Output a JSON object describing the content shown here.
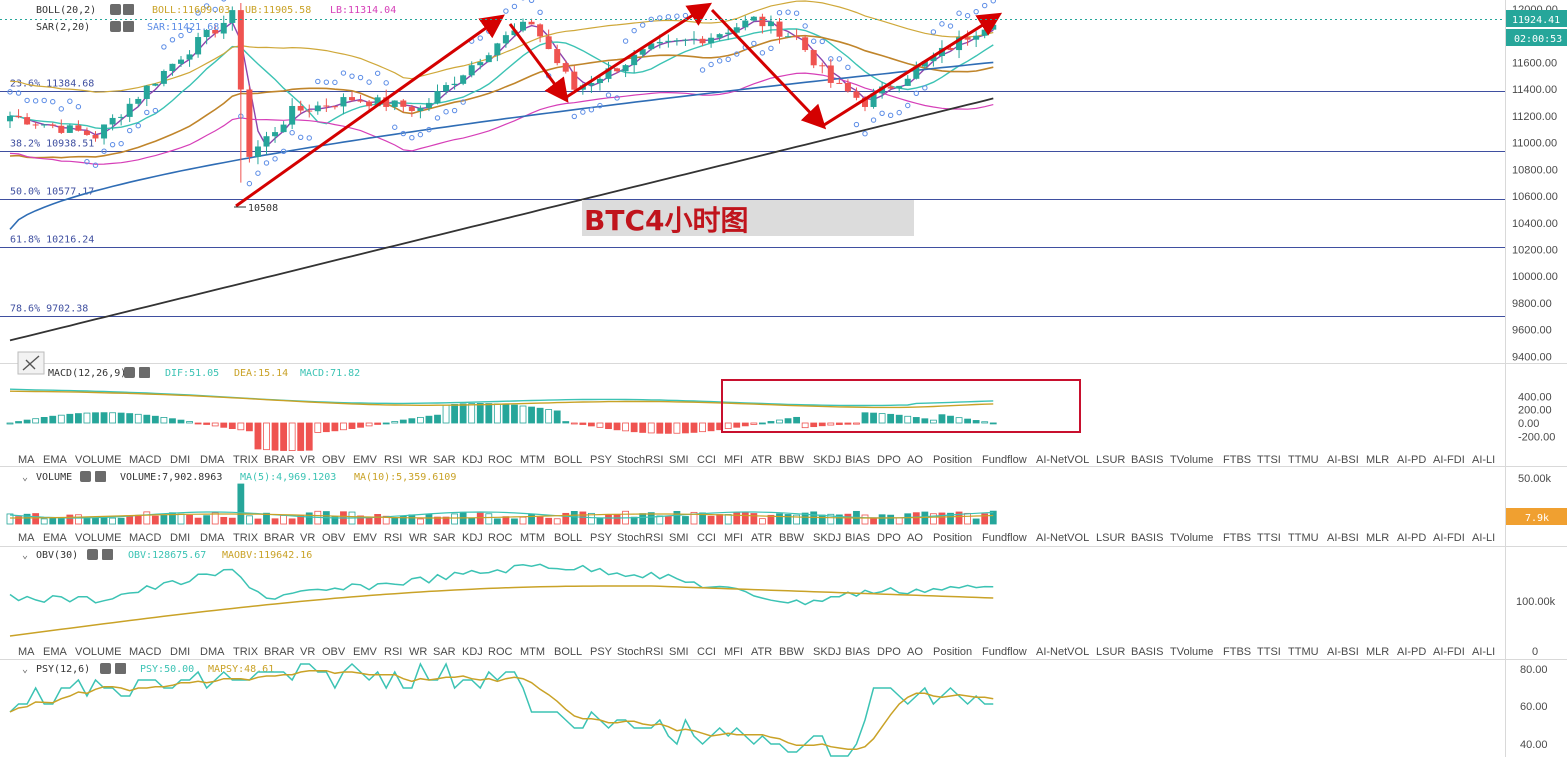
{
  "watermark": "BTC4小时图",
  "indicator_tabs": [
    "MA",
    "EMA",
    "VOLUME",
    "MACD",
    "DMI",
    "DMA",
    "TRIX",
    "BRAR",
    "VR",
    "OBV",
    "EMV",
    "RSI",
    "WR",
    "SAR",
    "KDJ",
    "ROC",
    "MTM",
    "BOLL",
    "PSY",
    "StochRSI",
    "SMI",
    "CCI",
    "MFI",
    "ATR",
    "BBW",
    "SKDJ",
    "BIAS",
    "DPO",
    "AO",
    "Position",
    "Fundflow",
    "AI-NetVOL",
    "LSUR",
    "BASIS",
    "TVolume",
    "FTBS",
    "TTSI",
    "TTMU",
    "AI-BSI",
    "MLR",
    "AI-PD",
    "AI-FDI",
    "AI-LI"
  ],
  "colors": {
    "up": "#26a69a",
    "down": "#ef5350",
    "boll_mid": "#c9a227",
    "boll_ub": "#cfa83a",
    "boll_lb": "#d63fb8",
    "ma_purple": "#8e44ad",
    "ma_teal": "#3cc3b4",
    "ma_blue": "#2f6db5",
    "ma_black": "#333333",
    "ma_brown": "#c0852b",
    "sar": "#5b8ce6",
    "arrow": "#d40000"
  },
  "main": {
    "boll_legend": {
      "name": "BOLL(20,2)",
      "boll": "BOLL:11609.03",
      "ub": "UB:11905.58",
      "lb": "LB:11314.04"
    },
    "sar_legend": {
      "name": "SAR(2,20)",
      "value": "SAR:11421.68"
    },
    "fib_levels": [
      {
        "label": "23.6% 11384.68",
        "price": 11384.68
      },
      {
        "label": "38.2% 10938.51",
        "price": 10938.51
      },
      {
        "label": "50.0% 10577.17",
        "price": 10577.17
      },
      {
        "label": "61.8% 10216.24",
        "price": 10216.24
      },
      {
        "label": "78.6% 9702.38",
        "price": 9702.38
      }
    ],
    "low_label": "10508",
    "current_price": "11924.41",
    "countdown": "02:00:53",
    "y_ticks": [
      "12000.00",
      "11800.00",
      "11600.00",
      "11400.00",
      "11200.00",
      "11000.00",
      "10800.00",
      "10600.00",
      "10400.00",
      "10200.00",
      "10000.00",
      "9800.00",
      "9600.00",
      "9400.00"
    ]
  },
  "chart_data": [
    {
      "type": "candlestick",
      "title": "BTC4小时图",
      "ylim": [
        9300,
        12050
      ],
      "series": [
        {
          "name": "BOLL(20,2)",
          "value": 11609.03
        },
        {
          "name": "UB",
          "value": 11905.58
        },
        {
          "name": "LB",
          "value": 11314.04
        },
        {
          "name": "SAR(2,20)",
          "value": 11421.68
        }
      ],
      "last_price": 11924.41,
      "swing_low": 10508
    },
    {
      "type": "bar",
      "title": "MACD(12,26,9)",
      "series": [
        {
          "name": "DIF",
          "value": 51.05
        },
        {
          "name": "DEA",
          "value": 15.14
        },
        {
          "name": "MACD",
          "value": 71.82
        }
      ],
      "ylim": [
        -250,
        420
      ]
    },
    {
      "type": "bar",
      "title": "VOLUME",
      "series": [
        {
          "name": "VOLUME",
          "value": 7902.8963
        },
        {
          "name": "MA(5)",
          "value": 4969.1203
        },
        {
          "name": "MA(10)",
          "value": 5359.6109
        }
      ]
    },
    {
      "type": "line",
      "title": "OBV(30)",
      "series": [
        {
          "name": "OBV",
          "value": 128675.67
        },
        {
          "name": "MAOBV",
          "value": 119642.16
        }
      ]
    },
    {
      "type": "line",
      "title": "PSY(12,6)",
      "series": [
        {
          "name": "PSY",
          "value": 50.0
        },
        {
          "name": "MAPSY",
          "value": 48.61
        }
      ]
    }
  ],
  "macd": {
    "name": "MACD(12,26,9)",
    "dif": "DIF:51.05",
    "dea": "DEA:15.14",
    "macd": "MACD:71.82",
    "y_ticks": [
      "400.00",
      "200.00",
      "0.00",
      "-200.00"
    ]
  },
  "volume": {
    "name": "VOLUME",
    "value": "VOLUME:7,902.8963",
    "ma5": "MA(5):4,969.1203",
    "ma10": "MA(10):5,359.6109",
    "y_ticks": [
      "50.00k"
    ],
    "current": "7.9k"
  },
  "obv": {
    "name": "OBV(30)",
    "value": "OBV:128675.67",
    "ma": "MAOBV:119642.16",
    "y_ticks": [
      "100.00k",
      "0"
    ]
  },
  "psy": {
    "name": "PSY(12,6)",
    "value": "PSY:50.00",
    "ma": "MAPSY:48.61",
    "y_ticks": [
      "80.00",
      "60.00",
      "40.00"
    ]
  }
}
